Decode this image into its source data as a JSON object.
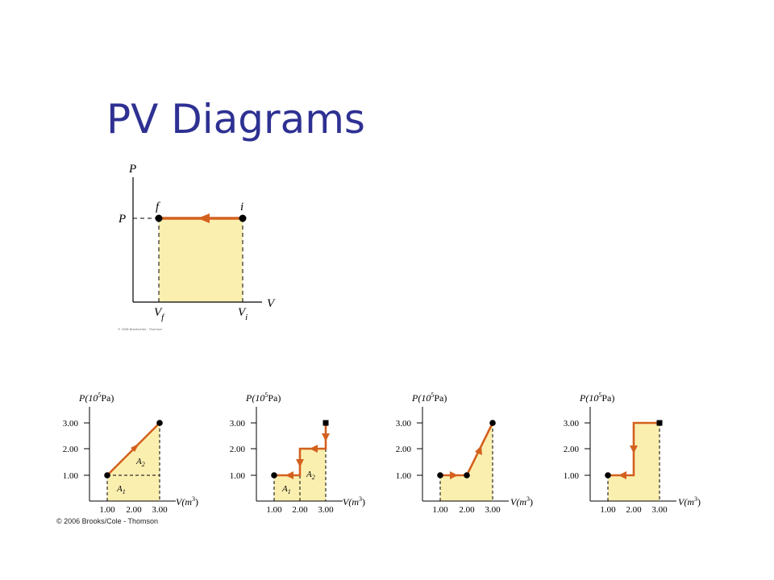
{
  "slide": {
    "title": "PV Diagrams",
    "credit": "© 2006 Brooks/Cole - Thomson",
    "colors": {
      "title": "#2e3192",
      "area": "#fbefb0",
      "path": "#d4601e",
      "point": "#000000"
    }
  },
  "main_diagram": {
    "p_axis_label": "P",
    "v_axis_label": "V",
    "pressure_label": "P",
    "point_f_label": "f",
    "point_i_label": "i",
    "vf_label": "V",
    "vf_subscript": "f",
    "vi_label": "V",
    "vi_subscript": "i",
    "tiny_credit": "© 2006 Brooks/Cole - Thomson"
  },
  "small_graphs": {
    "y_axis_base": "P(10",
    "y_axis_exp": "5",
    "y_axis_unit": "Pa)",
    "x_axis_base": "V(m",
    "x_axis_exp": "3",
    "x_axis_close": ")",
    "x_ticks": [
      "1.00",
      "2.00",
      "3.00"
    ],
    "y_ticks": [
      "1.00",
      "2.00",
      "3.00"
    ],
    "graph1": {
      "a1": "A",
      "a1_sub": "1",
      "a2": "A",
      "a2_sub": "2"
    },
    "graph2": {
      "a1": "A",
      "a1_sub": "1",
      "a2": "A",
      "a2_sub": "2"
    }
  }
}
